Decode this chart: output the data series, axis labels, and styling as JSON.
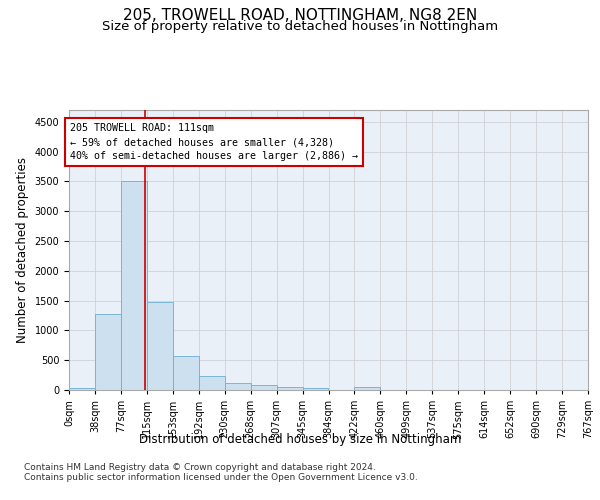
{
  "title_line1": "205, TROWELL ROAD, NOTTINGHAM, NG8 2EN",
  "title_line2": "Size of property relative to detached houses in Nottingham",
  "xlabel": "Distribution of detached houses by size in Nottingham",
  "ylabel": "Number of detached properties",
  "bar_color": "#cce0f0",
  "bar_edge_color": "#6aaed6",
  "bin_labels": [
    "0sqm",
    "38sqm",
    "77sqm",
    "115sqm",
    "153sqm",
    "192sqm",
    "230sqm",
    "268sqm",
    "307sqm",
    "345sqm",
    "384sqm",
    "422sqm",
    "460sqm",
    "499sqm",
    "537sqm",
    "575sqm",
    "614sqm",
    "652sqm",
    "690sqm",
    "729sqm",
    "767sqm"
  ],
  "bar_values": [
    40,
    1280,
    3500,
    1480,
    575,
    240,
    115,
    85,
    55,
    40,
    0,
    50,
    0,
    0,
    0,
    0,
    0,
    0,
    0,
    0
  ],
  "ylim": [
    0,
    4700
  ],
  "yticks": [
    0,
    500,
    1000,
    1500,
    2000,
    2500,
    3000,
    3500,
    4000,
    4500
  ],
  "vline_x": 111,
  "bin_width": 38,
  "annotation_text": "205 TROWELL ROAD: 111sqm\n← 59% of detached houses are smaller (4,328)\n40% of semi-detached houses are larger (2,886) →",
  "annotation_box_color": "#ffffff",
  "annotation_box_edge": "#cc0000",
  "vline_color": "#cc0000",
  "grid_color": "#cccccc",
  "background_color": "#eaf0f8",
  "footer_text": "Contains HM Land Registry data © Crown copyright and database right 2024.\nContains public sector information licensed under the Open Government Licence v3.0.",
  "title_fontsize": 11,
  "subtitle_fontsize": 9.5,
  "axis_label_fontsize": 8.5,
  "tick_fontsize": 7,
  "footer_fontsize": 6.5
}
